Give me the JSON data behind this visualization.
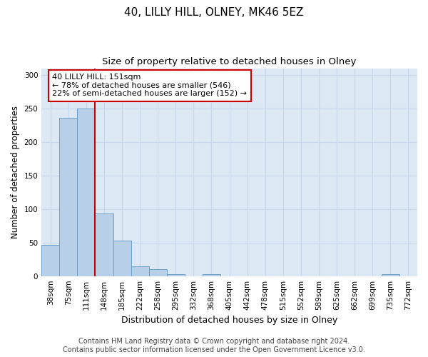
{
  "title": "40, LILLY HILL, OLNEY, MK46 5EZ",
  "subtitle": "Size of property relative to detached houses in Olney",
  "xlabel": "Distribution of detached houses by size in Olney",
  "ylabel": "Number of detached properties",
  "bin_labels": [
    "38sqm",
    "75sqm",
    "111sqm",
    "148sqm",
    "185sqm",
    "222sqm",
    "258sqm",
    "295sqm",
    "332sqm",
    "368sqm",
    "405sqm",
    "442sqm",
    "478sqm",
    "515sqm",
    "552sqm",
    "589sqm",
    "625sqm",
    "662sqm",
    "699sqm",
    "735sqm",
    "772sqm"
  ],
  "bar_values": [
    47,
    236,
    250,
    93,
    53,
    15,
    10,
    3,
    0,
    3,
    0,
    0,
    0,
    0,
    0,
    0,
    0,
    0,
    0,
    3,
    0
  ],
  "bar_color": "#b8cfe8",
  "bar_edge_color": "#6a9fc8",
  "vline_color": "#cc0000",
  "annotation_text": "40 LILLY HILL: 151sqm\n← 78% of detached houses are smaller (546)\n22% of semi-detached houses are larger (152) →",
  "annotation_box_color": "white",
  "annotation_box_edge": "#cc0000",
  "ylim": [
    0,
    310
  ],
  "yticks": [
    0,
    50,
    100,
    150,
    200,
    250,
    300
  ],
  "grid_color": "#c8d8ec",
  "background_color": "#dce8f4",
  "footer_line1": "Contains HM Land Registry data © Crown copyright and database right 2024.",
  "footer_line2": "Contains public sector information licensed under the Open Government Licence v3.0.",
  "title_fontsize": 11,
  "subtitle_fontsize": 9.5,
  "annotation_fontsize": 8,
  "footer_fontsize": 7,
  "ylabel_fontsize": 8.5,
  "xlabel_fontsize": 9,
  "tick_fontsize": 7.5
}
